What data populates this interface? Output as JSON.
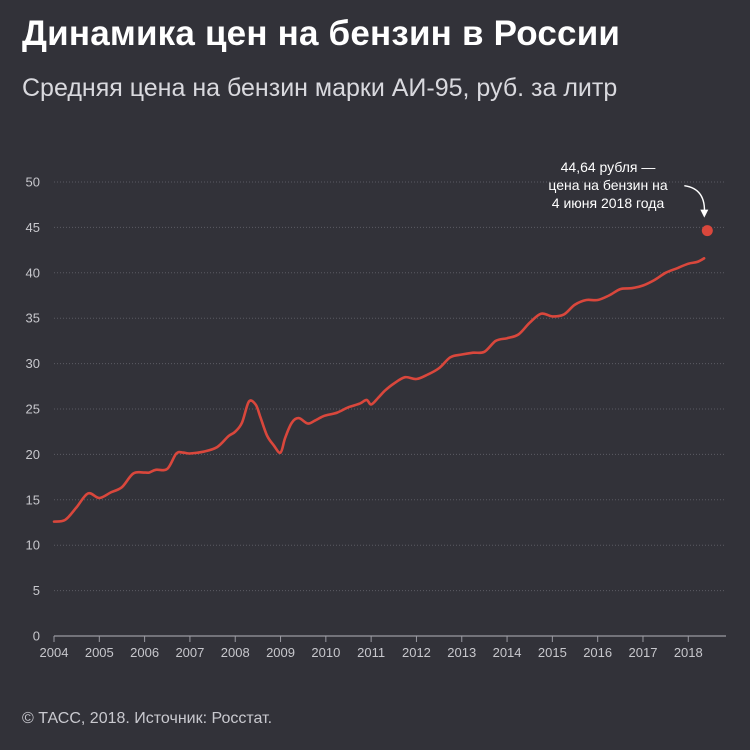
{
  "header": {
    "title": "Динамика цен на бензин в России",
    "subtitle": "Средняя цена на бензин марки АИ-95, руб. за литр"
  },
  "footer": {
    "source": "© ТАСС, 2018. Источник: Росстат."
  },
  "colors": {
    "background": "#323239",
    "line": "#d9473c",
    "grid": "#5b5b63",
    "text": "#ffffff",
    "tick": "#c7c7cc"
  },
  "chart_data": {
    "type": "line",
    "title": "Динамика цен на бензин в России",
    "subtitle": "Средняя цена на бензин марки АИ-95, руб. за литр",
    "xlabel": "",
    "ylabel": "",
    "ylim": [
      0,
      50
    ],
    "xlim": [
      2004,
      2018.7
    ],
    "grid": true,
    "y_ticks": [
      0,
      5,
      10,
      15,
      20,
      25,
      30,
      35,
      40,
      45,
      50
    ],
    "x_ticks": [
      "2004",
      "2005",
      "2006",
      "2007",
      "2008",
      "2009",
      "2010",
      "2011",
      "2012",
      "2013",
      "2014",
      "2015",
      "2016",
      "2017",
      "2018"
    ],
    "series": [
      {
        "name": "АИ-95",
        "x": [
          2004.0,
          2004.25,
          2004.5,
          2004.75,
          2005.0,
          2005.25,
          2005.5,
          2005.75,
          2006.0,
          2006.1,
          2006.25,
          2006.5,
          2006.7,
          2006.85,
          2007.0,
          2007.3,
          2007.6,
          2007.85,
          2008.0,
          2008.15,
          2008.3,
          2008.45,
          2008.55,
          2008.7,
          2008.85,
          2009.0,
          2009.1,
          2009.25,
          2009.4,
          2009.6,
          2009.75,
          2009.9,
          2010.0,
          2010.25,
          2010.5,
          2010.75,
          2010.9,
          2011.0,
          2011.15,
          2011.3,
          2011.5,
          2011.75,
          2012.0,
          2012.25,
          2012.5,
          2012.75,
          2013.0,
          2013.25,
          2013.5,
          2013.75,
          2014.0,
          2014.25,
          2014.5,
          2014.75,
          2015.0,
          2015.25,
          2015.5,
          2015.75,
          2016.0,
          2016.25,
          2016.5,
          2016.75,
          2017.0,
          2017.25,
          2017.5,
          2017.75,
          2018.0,
          2018.2,
          2018.35
        ],
        "values": [
          12.6,
          12.8,
          14.2,
          15.7,
          15.2,
          15.8,
          16.4,
          17.9,
          18.0,
          18.0,
          18.3,
          18.4,
          20.1,
          20.2,
          20.1,
          20.3,
          20.8,
          22.0,
          22.5,
          23.5,
          25.8,
          25.5,
          24.2,
          22.1,
          21.0,
          20.2,
          21.8,
          23.5,
          24.0,
          23.4,
          23.7,
          24.1,
          24.3,
          24.6,
          25.2,
          25.6,
          26.0,
          25.5,
          26.2,
          27.0,
          27.8,
          28.5,
          28.3,
          28.8,
          29.5,
          30.7,
          31.0,
          31.2,
          31.3,
          32.5,
          32.8,
          33.2,
          34.5,
          35.5,
          35.2,
          35.4,
          36.5,
          37.0,
          37.0,
          37.5,
          38.2,
          38.3,
          38.6,
          39.2,
          40.0,
          40.5,
          41.0,
          41.2,
          41.6
        ]
      }
    ],
    "highlight_point": {
      "x": 2018.42,
      "value": 44.64,
      "label_lines": [
        "44,64 рубля —",
        "цена на бензин на",
        "4 июня 2018 года"
      ]
    }
  }
}
